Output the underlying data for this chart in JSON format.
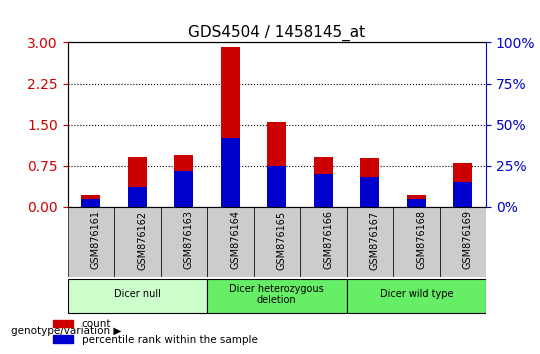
{
  "title": "GDS4504 / 1458145_at",
  "samples": [
    "GSM876161",
    "GSM876162",
    "GSM876163",
    "GSM876164",
    "GSM876165",
    "GSM876166",
    "GSM876167",
    "GSM876168",
    "GSM876169"
  ],
  "count_values": [
    0.22,
    0.92,
    0.95,
    2.92,
    1.55,
    0.92,
    0.9,
    0.22,
    0.8
  ],
  "percentile_values": [
    0.05,
    0.12,
    0.22,
    0.42,
    0.25,
    0.2,
    0.18,
    0.05,
    0.15
  ],
  "bar_width": 0.4,
  "ylim_left": [
    0,
    3
  ],
  "ylim_right": [
    0,
    100
  ],
  "yticks_left": [
    0,
    0.75,
    1.5,
    2.25,
    3
  ],
  "yticks_right": [
    0,
    25,
    50,
    75,
    100
  ],
  "left_color": "#cc0000",
  "right_color": "#0000cc",
  "grid_color": "#000000",
  "groups": [
    {
      "label": "Dicer null",
      "start": 0,
      "end": 3,
      "color": "#ccffcc"
    },
    {
      "label": "Dicer heterozygous\ndeletion",
      "start": 3,
      "end": 6,
      "color": "#66ff66"
    },
    {
      "label": "Dicer wild type",
      "start": 6,
      "end": 9,
      "color": "#66ff66"
    }
  ],
  "group_label": "genotype/variation",
  "legend_count_color": "#cc0000",
  "legend_percentile_color": "#0000cc",
  "background_color": "#ffffff",
  "plot_bg_color": "#ffffff",
  "tick_label_color_left": "#cc0000",
  "tick_label_color_right": "#0000cc"
}
